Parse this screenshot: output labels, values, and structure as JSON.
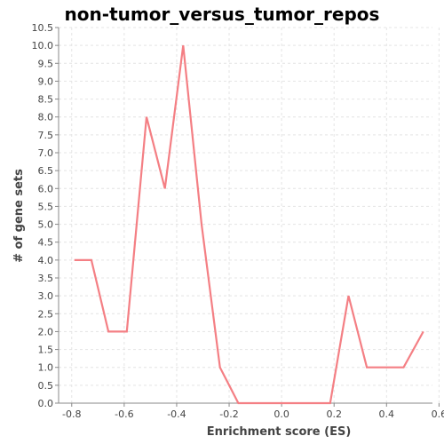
{
  "chart_data": {
    "type": "line",
    "title": "non-tumor_versus_tumor_repos",
    "xlabel": "Enrichment score (ES)",
    "ylabel": "# of gene sets",
    "xlim": [
      -0.85,
      0.575
    ],
    "ylim": [
      0,
      10.5
    ],
    "grid": true,
    "x_ticks": [
      -0.8,
      -0.6,
      -0.4,
      -0.2,
      0.0,
      0.2,
      0.4,
      0.6
    ],
    "x_tick_labels": [
      "-0.8",
      "-0.6",
      "-0.4",
      "-0.2",
      "0.0",
      "0.2",
      "0.4",
      "0.6"
    ],
    "y_ticks": [
      0,
      0.5,
      1,
      1.5,
      2,
      2.5,
      3,
      3.5,
      4,
      4.5,
      5,
      5.5,
      6,
      6.5,
      7,
      7.5,
      8,
      8.5,
      9,
      9.5,
      10,
      10.5
    ],
    "y_tick_labels": [
      "0.0",
      "0.5",
      "1.0",
      "1.5",
      "2.0",
      "2.5",
      "3.0",
      "3.5",
      "4.0",
      "4.5",
      "5.0",
      "5.5",
      "6.0",
      "6.5",
      "7.0",
      "7.5",
      "8.0",
      "8.5",
      "9.0",
      "9.5",
      "10.0",
      "10.5"
    ],
    "series": [
      {
        "color": "#f47f84",
        "x": [
          -0.79,
          -0.725,
          -0.66,
          -0.59,
          -0.515,
          -0.445,
          -0.375,
          -0.305,
          -0.235,
          -0.165,
          -0.095,
          -0.025,
          0.04,
          0.11,
          0.185,
          0.255,
          0.325,
          0.395,
          0.465,
          0.54
        ],
        "y": [
          4,
          4,
          2,
          2,
          8,
          6,
          10,
          5,
          1,
          0,
          0,
          0,
          0,
          0,
          0,
          3,
          1,
          1,
          1,
          2
        ]
      }
    ]
  }
}
